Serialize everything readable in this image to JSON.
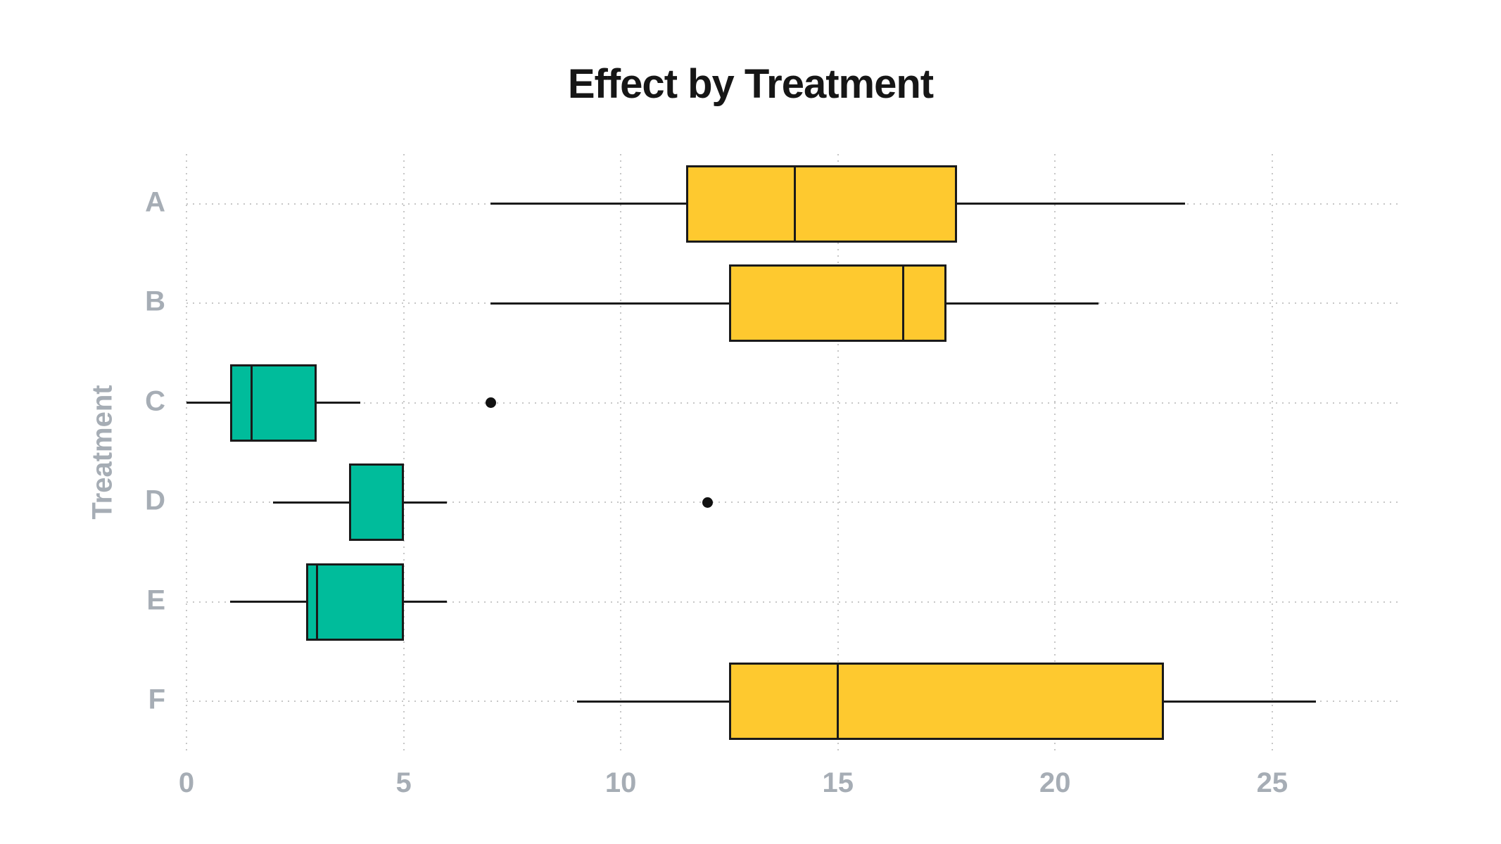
{
  "title": "Effect by Treatment",
  "colors": {
    "yellow": "#FEC92F",
    "teal": "#00BC9B",
    "box_outline": "#1a1a1a",
    "outlier": "#111111",
    "grid": "#c7c7c7",
    "axis_label": "#a6adb5",
    "title": "#161616",
    "background": "#ffffff"
  },
  "chart_data": {
    "type": "boxplot",
    "orientation": "horizontal",
    "title": "Effect by Treatment",
    "xlabel": "",
    "ylabel": "Treatment",
    "categories": [
      "A",
      "B",
      "C",
      "D",
      "E",
      "F"
    ],
    "x_ticks": [
      0,
      5,
      10,
      15,
      20,
      25
    ],
    "xlim": [
      0,
      28
    ],
    "grid": true,
    "legend": false,
    "series": [
      {
        "category": "A",
        "whisker_low": 7,
        "q1": 11.5,
        "median": 14,
        "q3": 17.75,
        "whisker_high": 23,
        "outliers": [],
        "color_key": "yellow"
      },
      {
        "category": "B",
        "whisker_low": 7,
        "q1": 12.5,
        "median": 16.5,
        "q3": 17.5,
        "whisker_high": 21,
        "outliers": [],
        "color_key": "yellow"
      },
      {
        "category": "C",
        "whisker_low": 0,
        "q1": 1,
        "median": 1.5,
        "q3": 3,
        "whisker_high": 4,
        "outliers": [
          7
        ],
        "color_key": "teal"
      },
      {
        "category": "D",
        "whisker_low": 2,
        "q1": 3.75,
        "median": 5,
        "q3": 5,
        "whisker_high": 6,
        "outliers": [
          12
        ],
        "color_key": "teal"
      },
      {
        "category": "E",
        "whisker_low": 1,
        "q1": 2.75,
        "median": 3,
        "q3": 5,
        "whisker_high": 6,
        "outliers": [],
        "color_key": "teal"
      },
      {
        "category": "F",
        "whisker_low": 9,
        "q1": 12.5,
        "median": 15,
        "q3": 22.5,
        "whisker_high": 26,
        "outliers": [],
        "color_key": "yellow"
      }
    ]
  }
}
